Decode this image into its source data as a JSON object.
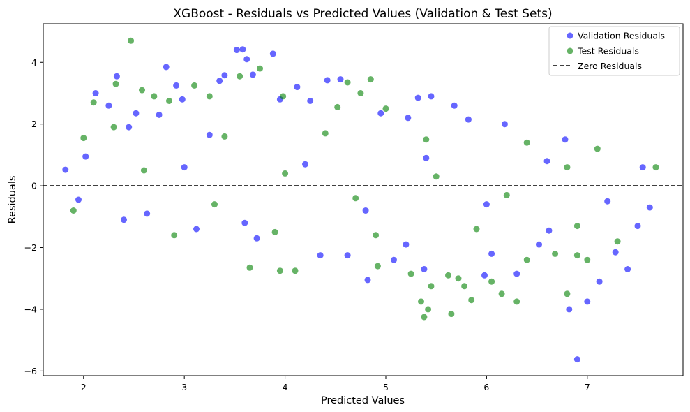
{
  "chart_data": {
    "type": "scatter",
    "title": "XGBoost - Residuals vs Predicted Values (Validation & Test Sets)",
    "xlabel": "Predicted Values",
    "ylabel": "Residuals",
    "xlim": [
      1.6,
      7.95
    ],
    "ylim": [
      -6.15,
      5.25
    ],
    "xticks": [
      2,
      3,
      4,
      5,
      6,
      7
    ],
    "yticks": [
      -6,
      -4,
      -2,
      0,
      2,
      4
    ],
    "xtick_labels": [
      "2",
      "3",
      "4",
      "5",
      "6",
      "7"
    ],
    "ytick_labels": [
      "−6",
      "−4",
      "−2",
      "0",
      "2",
      "4"
    ],
    "grid": false,
    "legend_position": "top-right",
    "series": [
      {
        "name": "Validation Residuals",
        "color": "#0000ff",
        "alpha": 0.6,
        "points": [
          [
            1.82,
            0.52
          ],
          [
            1.95,
            -0.45
          ],
          [
            2.02,
            0.95
          ],
          [
            2.12,
            3.0
          ],
          [
            2.25,
            2.6
          ],
          [
            2.33,
            3.55
          ],
          [
            2.45,
            1.9
          ],
          [
            2.52,
            2.35
          ],
          [
            2.63,
            -0.9
          ],
          [
            2.75,
            2.3
          ],
          [
            2.82,
            3.85
          ],
          [
            2.92,
            3.25
          ],
          [
            2.98,
            2.8
          ],
          [
            3.12,
            -1.4
          ],
          [
            3.25,
            1.65
          ],
          [
            3.35,
            3.4
          ],
          [
            3.4,
            3.58
          ],
          [
            3.52,
            4.4
          ],
          [
            3.58,
            4.42
          ],
          [
            3.62,
            4.1
          ],
          [
            3.68,
            3.6
          ],
          [
            3.72,
            -1.7
          ],
          [
            3.88,
            4.28
          ],
          [
            3.95,
            2.8
          ],
          [
            4.12,
            3.2
          ],
          [
            4.25,
            2.75
          ],
          [
            4.35,
            -2.25
          ],
          [
            4.42,
            3.42
          ],
          [
            4.55,
            3.45
          ],
          [
            4.62,
            -2.25
          ],
          [
            4.82,
            -3.05
          ],
          [
            4.95,
            2.35
          ],
          [
            5.08,
            -2.4
          ],
          [
            5.22,
            2.2
          ],
          [
            5.32,
            2.85
          ],
          [
            5.38,
            -2.7
          ],
          [
            5.45,
            2.9
          ],
          [
            5.68,
            2.6
          ],
          [
            5.82,
            2.15
          ],
          [
            5.98,
            -2.9
          ],
          [
            6.05,
            -2.2
          ],
          [
            6.18,
            2.0
          ],
          [
            6.3,
            -2.85
          ],
          [
            6.52,
            -1.9
          ],
          [
            6.62,
            -1.45
          ],
          [
            6.78,
            1.5
          ],
          [
            6.82,
            -4.0
          ],
          [
            6.9,
            -5.62
          ],
          [
            7.0,
            -3.75
          ],
          [
            7.12,
            -3.1
          ],
          [
            7.28,
            -2.15
          ],
          [
            7.4,
            -2.7
          ],
          [
            7.5,
            -1.3
          ],
          [
            7.55,
            0.6
          ],
          [
            7.62,
            -0.7
          ],
          [
            2.4,
            -1.1
          ],
          [
            3.0,
            0.6
          ],
          [
            3.6,
            -1.2
          ],
          [
            4.2,
            0.7
          ],
          [
            4.8,
            -0.8
          ],
          [
            5.4,
            0.9
          ],
          [
            6.0,
            -0.6
          ],
          [
            6.6,
            0.8
          ],
          [
            7.2,
            -0.5
          ],
          [
            5.2,
            -1.9
          ]
        ]
      },
      {
        "name": "Test Residuals",
        "color": "#008000",
        "alpha": 0.6,
        "points": [
          [
            2.0,
            1.55
          ],
          [
            2.1,
            2.7
          ],
          [
            2.32,
            3.3
          ],
          [
            2.47,
            4.7
          ],
          [
            2.58,
            3.1
          ],
          [
            2.7,
            2.9
          ],
          [
            2.85,
            2.75
          ],
          [
            3.1,
            3.25
          ],
          [
            3.25,
            2.9
          ],
          [
            3.55,
            3.55
          ],
          [
            3.65,
            -2.65
          ],
          [
            3.75,
            3.8
          ],
          [
            3.95,
            -2.75
          ],
          [
            3.98,
            2.9
          ],
          [
            4.1,
            -2.75
          ],
          [
            4.52,
            2.55
          ],
          [
            4.62,
            3.35
          ],
          [
            4.75,
            3.0
          ],
          [
            4.85,
            3.45
          ],
          [
            4.92,
            -2.6
          ],
          [
            5.25,
            -2.85
          ],
          [
            5.35,
            -3.75
          ],
          [
            5.38,
            -4.25
          ],
          [
            5.42,
            -4.0
          ],
          [
            5.45,
            -3.25
          ],
          [
            5.62,
            -2.9
          ],
          [
            5.65,
            -4.15
          ],
          [
            5.72,
            -3.0
          ],
          [
            5.78,
            -3.25
          ],
          [
            5.85,
            -3.7
          ],
          [
            6.05,
            -3.1
          ],
          [
            6.15,
            -3.5
          ],
          [
            6.3,
            -3.75
          ],
          [
            6.4,
            -2.4
          ],
          [
            6.68,
            -2.2
          ],
          [
            6.8,
            -3.5
          ],
          [
            6.9,
            -2.25
          ],
          [
            7.0,
            -2.4
          ],
          [
            7.3,
            -1.8
          ],
          [
            7.68,
            0.6
          ],
          [
            1.9,
            -0.8
          ],
          [
            2.3,
            1.9
          ],
          [
            2.9,
            -1.6
          ],
          [
            3.4,
            1.6
          ],
          [
            3.9,
            -1.5
          ],
          [
            4.4,
            1.7
          ],
          [
            4.9,
            -1.6
          ],
          [
            5.4,
            1.5
          ],
          [
            5.9,
            -1.4
          ],
          [
            6.4,
            1.4
          ],
          [
            6.9,
            -1.3
          ],
          [
            7.1,
            1.2
          ],
          [
            2.6,
            0.5
          ],
          [
            3.3,
            -0.6
          ],
          [
            4.0,
            0.4
          ],
          [
            4.7,
            -0.4
          ],
          [
            5.5,
            0.3
          ],
          [
            6.2,
            -0.3
          ],
          [
            6.8,
            0.6
          ],
          [
            5.0,
            2.5
          ]
        ]
      },
      {
        "name": "Zero Residuals",
        "color": "#000000",
        "style": "dashed",
        "y": 0
      }
    ]
  }
}
